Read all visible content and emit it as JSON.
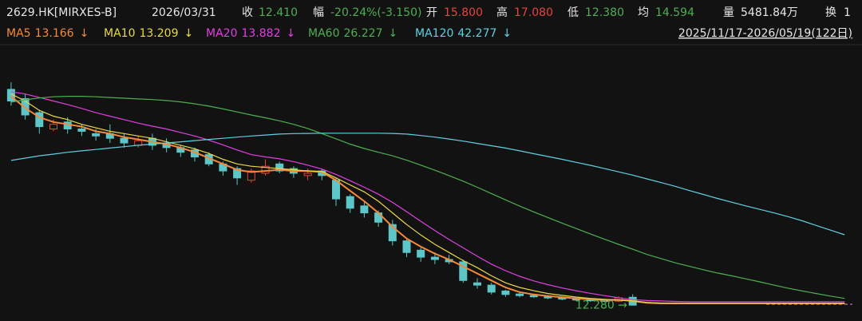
{
  "chart_data": {
    "type": "candlestick",
    "header": [
      {
        "text": "2629.HK[MIRXES-B]",
        "color": "#e6e6e6"
      },
      {
        "text": "2026/03/31",
        "color": "#e6e6e6"
      },
      {
        "text": "收",
        "color": "#e6e6e6"
      },
      {
        "text": "12.410",
        "color": "#4cb050"
      },
      {
        "text": "幅",
        "color": "#e6e6e6"
      },
      {
        "text": "-20.24%(-3.150)",
        "color": "#4cb050"
      },
      {
        "text": "开",
        "color": "#e6e6e6"
      },
      {
        "text": "15.800",
        "color": "#e8433a"
      },
      {
        "text": "高",
        "color": "#e6e6e6"
      },
      {
        "text": "17.080",
        "color": "#e8433a"
      },
      {
        "text": "低",
        "color": "#e6e6e6"
      },
      {
        "text": "12.380",
        "color": "#4cb050"
      },
      {
        "text": "均",
        "color": "#e6e6e6"
      },
      {
        "text": "14.594",
        "color": "#4cb050"
      },
      {
        "text": "量",
        "color": "#e6e6e6"
      },
      {
        "text": "5481.84万",
        "color": "#e6e6e6"
      },
      {
        "text": "换",
        "color": "#e6e6e6"
      },
      {
        "text": "1",
        "color": "#e6e6e6"
      }
    ],
    "range_label": "2025/11/17-2026/05/19(122日)",
    "annotation": {
      "value": 12.28,
      "label": "12.280 →",
      "color": "#4cb050"
    },
    "ylim": [
      6.3,
      126.2
    ],
    "up_color": "#e8433a",
    "down_color": "#5cc6c8",
    "open": [
      105,
      101,
      95,
      88,
      91,
      88,
      86,
      86,
      84,
      81,
      84,
      82,
      80,
      79,
      77,
      73,
      71,
      66,
      69,
      73,
      71,
      68,
      70,
      66,
      59,
      55,
      52,
      47,
      40,
      36,
      33,
      32,
      31,
      22,
      21,
      18.5,
      17.2,
      16.6,
      16.2,
      15.6,
      15.1,
      14.7,
      14.4,
      14.1,
      15.8,
      null,
      null,
      null,
      null,
      null,
      null,
      null,
      null,
      null,
      null,
      null,
      null,
      null,
      null,
      null
    ],
    "high": [
      108,
      103,
      96,
      92,
      93,
      90,
      88,
      90,
      86,
      85,
      86,
      84,
      81,
      80,
      78,
      74,
      72,
      71,
      75,
      74,
      72,
      71,
      71,
      67,
      60,
      57,
      53,
      49,
      41,
      37,
      35,
      34,
      32,
      24,
      22,
      19,
      18,
      17.2,
      16.8,
      16,
      15.5,
      15.1,
      14.8,
      16.2,
      17.08,
      null,
      null,
      null,
      null,
      null,
      null,
      null,
      null,
      null,
      null,
      null,
      null,
      null,
      null,
      null
    ],
    "low": [
      98,
      92,
      86,
      87,
      86,
      85,
      83,
      82,
      80,
      80,
      79,
      78,
      76,
      74,
      72,
      68,
      64,
      65,
      68,
      69,
      67,
      66,
      66,
      55,
      52,
      50,
      46,
      38,
      33,
      31,
      30,
      30,
      22,
      19.5,
      17,
      16,
      15.8,
      15.5,
      15,
      14.5,
      14.2,
      13.8,
      13.6,
      13.8,
      12.38,
      null,
      null,
      null,
      null,
      null,
      null,
      null,
      null,
      null,
      null,
      null,
      null,
      null,
      null,
      null
    ],
    "close": [
      100,
      94,
      89,
      90,
      88,
      87,
      85,
      84,
      82,
      83,
      81,
      80,
      78,
      76,
      73,
      70,
      67,
      70,
      72,
      70,
      69,
      69,
      68,
      58,
      54,
      52,
      48,
      40,
      35,
      33,
      32,
      31,
      23,
      21,
      18,
      17,
      16.5,
      16,
      15.5,
      15,
      14.6,
      14.3,
      14,
      15.56,
      12.41,
      null,
      null,
      null,
      null,
      null,
      null,
      null,
      null,
      null,
      null,
      null,
      null,
      null,
      null,
      null
    ],
    "series": [
      {
        "name": "MA5",
        "color": "#f5893a",
        "value_label": "13.166",
        "arrow": "↓",
        "values": [
          102,
          97,
          93,
          91,
          90,
          89,
          87,
          86,
          84.5,
          83.5,
          82.5,
          81.5,
          80,
          78,
          75.5,
          73,
          70.5,
          69.5,
          70,
          70.5,
          70,
          70,
          69.5,
          66,
          61.5,
          57,
          52,
          46,
          41,
          37.5,
          34.5,
          32,
          29,
          26,
          23,
          20,
          18,
          17,
          16.3,
          15.8,
          15.3,
          14.9,
          14.6,
          14.7,
          14.2,
          13.4,
          13.2,
          13.2,
          13.2,
          13.2,
          13.2,
          13.2,
          13.2,
          13.2,
          13.2,
          13.2,
          13.2,
          13.2,
          13.2,
          13.2
        ]
      },
      {
        "name": "MA10",
        "color": "#e8d84a",
        "value_label": "13.209",
        "arrow": "↓",
        "values": [
          103,
          100,
          96,
          93.5,
          92,
          90,
          88.5,
          87,
          86,
          85,
          84,
          82.5,
          81,
          79.5,
          77.5,
          75,
          73,
          72,
          71.5,
          71,
          70.5,
          70,
          69.8,
          67,
          64,
          61,
          57,
          52,
          47,
          42.5,
          38.5,
          35,
          31.5,
          28.5,
          25,
          22,
          20,
          18.6,
          17.4,
          16.6,
          15.9,
          15.3,
          14.9,
          14.6,
          14.2,
          13.6,
          13.3,
          13.2,
          13.2,
          13.2,
          13.2,
          13.2,
          13.2,
          13.2,
          13.2,
          13.2,
          13.2,
          13.2,
          13.2,
          13.2
        ]
      },
      {
        "name": "MA20",
        "color": "#e040e0",
        "value_label": "13.882",
        "arrow": "↓",
        "values": [
          104,
          103,
          101.5,
          100,
          98.5,
          96.8,
          95,
          93.5,
          92,
          90.5,
          89.2,
          88,
          86.5,
          85,
          83.2,
          81.2,
          79,
          77,
          76,
          75.2,
          74,
          72.5,
          70.8,
          68.5,
          65.8,
          63,
          60,
          56.5,
          52.5,
          48.4,
          44.4,
          40.6,
          37,
          33.4,
          30,
          27.2,
          24.8,
          22.8,
          21.2,
          19.8,
          18.6,
          17.5,
          16.5,
          15.6,
          14.8,
          14.4,
          14.2,
          14,
          13.9,
          13.9,
          13.9,
          13.9,
          13.9,
          13.9,
          13.9,
          13.9,
          13.9,
          13.9,
          13.9,
          13.9
        ]
      },
      {
        "name": "MA60",
        "color": "#4cb050",
        "value_label": "26.227",
        "arrow": "↓",
        "values": [
          99.5,
          100.5,
          101.3,
          101.8,
          102,
          102,
          101.8,
          101.5,
          101.2,
          100.9,
          100.6,
          100.2,
          99.6,
          98.8,
          97.8,
          96.6,
          95.3,
          94,
          92.8,
          91.5,
          90,
          88.2,
          86,
          83.8,
          81.5,
          79.6,
          78,
          76.5,
          74.6,
          72.5,
          70.3,
          68,
          65.6,
          63,
          60.3,
          57.6,
          54.9,
          52.4,
          50,
          47.6,
          45.3,
          43,
          40.7,
          38.5,
          36.4,
          34.2,
          32.4,
          30.6,
          29.1,
          27.6,
          26.2,
          25,
          23.7,
          22.4,
          21,
          19.7,
          18.5,
          17.4,
          16.3,
          15.3
        ]
      },
      {
        "name": "MA120",
        "color": "#60d0e0",
        "value_label": "42.277",
        "arrow": "↓",
        "values": [
          74.5,
          75.5,
          76.5,
          77.2,
          78,
          78.6,
          79.2,
          79.8,
          80.4,
          81,
          81.5,
          82,
          82.5,
          83,
          83.5,
          84,
          84.5,
          85,
          85.4,
          85.8,
          86,
          86.1,
          86.2,
          86.2,
          86.2,
          86.2,
          86.2,
          86.1,
          85.8,
          85.2,
          84.5,
          83.7,
          82.8,
          81.8,
          80.8,
          79.8,
          78.6,
          77.4,
          76.2,
          75,
          73.7,
          72.4,
          71,
          69.6,
          68.2,
          66.6,
          65,
          63.4,
          61.6,
          59.9,
          58.2,
          56.6,
          55,
          53.5,
          52,
          50.4,
          48.6,
          46.6,
          44.6,
          42.6
        ]
      }
    ]
  }
}
